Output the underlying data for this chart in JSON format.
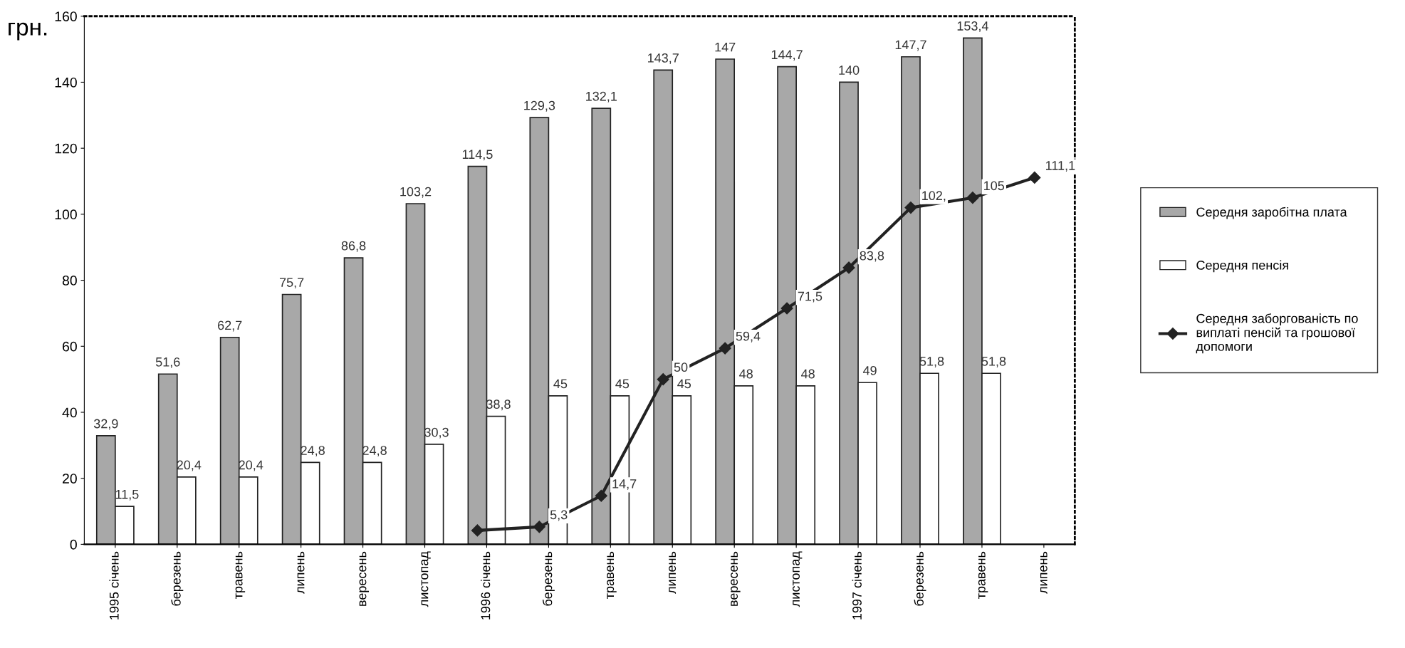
{
  "chart_data": {
    "type": "bar",
    "ylabel": "грн.",
    "categories": [
      "1995 січень",
      "березень",
      "травень",
      "липень",
      "вересень",
      "листопад",
      "1996 січень",
      "березень",
      "травень",
      "липень",
      "вересень",
      "листопад",
      "1997 січень",
      "березень",
      "травень",
      "липень"
    ],
    "series": [
      {
        "name": "Середня заробітна плата",
        "color": "#a8a8a8",
        "values": [
          32.9,
          51.6,
          62.7,
          75.7,
          86.8,
          103.2,
          114.5,
          129.3,
          132.1,
          143.7,
          147,
          144.7,
          140,
          147.7,
          153.4,
          null
        ],
        "value_labels": [
          "32,9",
          "51,6",
          "62,7",
          "75,7",
          "86,8",
          "103,2",
          "114,5",
          "129,3",
          "132,1",
          "143,7",
          "147",
          "144,7",
          "140",
          "147,7",
          "153,4",
          null
        ]
      },
      {
        "name": "Середня пенсія",
        "color": "#ffffff",
        "values": [
          11.5,
          20.4,
          20.4,
          24.8,
          24.8,
          30.3,
          38.8,
          45,
          45,
          45,
          48,
          48,
          49,
          51.8,
          51.8,
          null
        ],
        "value_labels": [
          "11,5",
          "20,4",
          "20,4",
          "24,8",
          "24,8",
          "30,3",
          "38,8",
          "45",
          "45",
          "45",
          "48",
          "48",
          "49",
          "51,8",
          "51,8",
          null
        ]
      },
      {
        "name": "Середня заборгованість по\nвиплаті пенсій та грошової\nдопомоги",
        "type": "line",
        "color": "#222222",
        "marker": "diamond",
        "values": [
          null,
          null,
          null,
          null,
          null,
          null,
          4.2,
          5.3,
          14.7,
          50,
          59.4,
          71.5,
          83.8,
          102,
          105,
          111.1
        ],
        "value_labels": [
          null,
          null,
          null,
          null,
          null,
          null,
          null,
          "5,3",
          "14,7",
          "50",
          "59,4",
          "71,5",
          "83,8",
          "102,",
          "105",
          "111,1"
        ]
      }
    ],
    "ylim": [
      0,
      160
    ],
    "yticks": [
      0,
      20,
      40,
      60,
      80,
      100,
      120,
      140,
      160
    ],
    "grid": false,
    "legend": "right"
  }
}
